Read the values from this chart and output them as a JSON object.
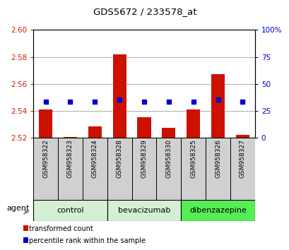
{
  "title": "GDS5672 / 233578_at",
  "samples": [
    "GSM958322",
    "GSM958323",
    "GSM958324",
    "GSM958328",
    "GSM958329",
    "GSM958330",
    "GSM958325",
    "GSM958326",
    "GSM958327"
  ],
  "transformed_counts": [
    2.541,
    2.5202,
    2.528,
    2.582,
    2.535,
    2.527,
    2.541,
    2.567,
    2.522
  ],
  "percentile_ranks": [
    33,
    33,
    33,
    35,
    33,
    33,
    33,
    35,
    33
  ],
  "bar_bottom": 2.52,
  "ylim_left": [
    2.52,
    2.6
  ],
  "ylim_right": [
    0,
    100
  ],
  "yticks_left": [
    2.52,
    2.54,
    2.56,
    2.58,
    2.6
  ],
  "yticks_right": [
    0,
    25,
    50,
    75,
    100
  ],
  "groups": [
    {
      "label": "control",
      "indices": [
        0,
        1,
        2
      ],
      "color": "#d4f0d4"
    },
    {
      "label": "bevacizumab",
      "indices": [
        3,
        4,
        5
      ],
      "color": "#d4f0d4"
    },
    {
      "label": "dibenzazepine",
      "indices": [
        6,
        7,
        8
      ],
      "color": "#55ee55"
    }
  ],
  "bar_color": "#cc1100",
  "dot_color": "#0000cc",
  "tick_label_color_left": "#cc2200",
  "tick_label_color_right": "#0000cc",
  "legend_items": [
    "transformed count",
    "percentile rank within the sample"
  ],
  "legend_colors": [
    "#cc1100",
    "#0000cc"
  ],
  "bar_width": 0.55,
  "xtick_bg_color": "#d0d0d0",
  "agent_label": "agent"
}
